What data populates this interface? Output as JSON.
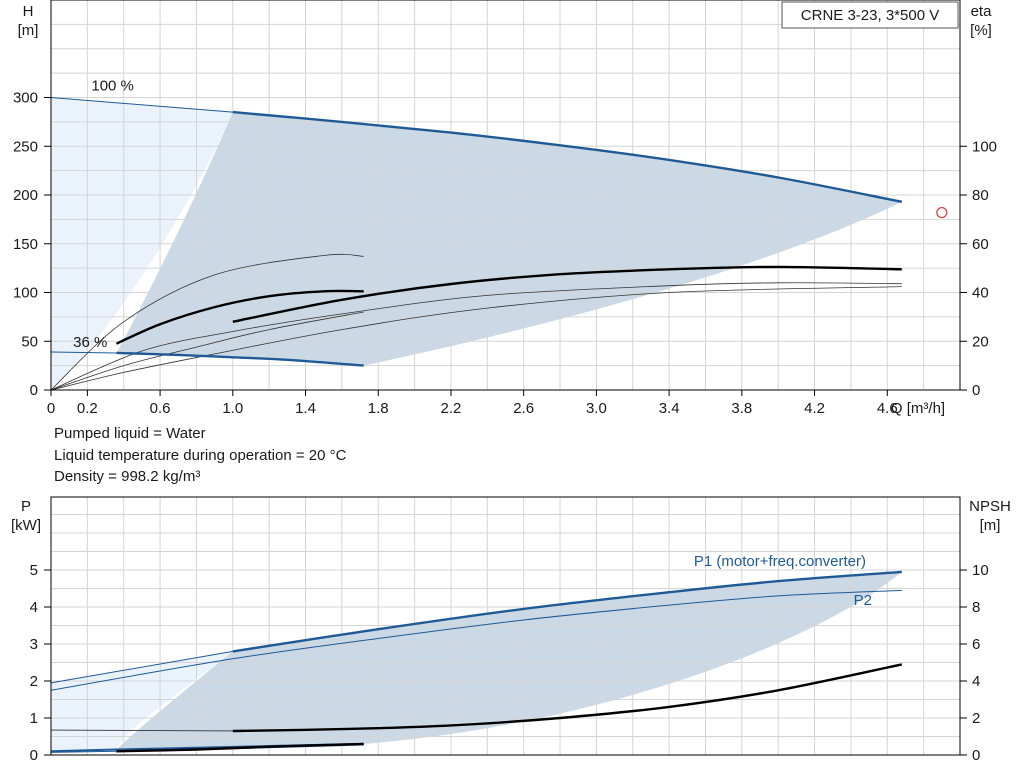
{
  "title": "CRNE 3-23, 3*500 V",
  "info_lines": [
    "Pumped liquid = Water",
    "Liquid temperature during operation = 20 °C",
    "Density = 998.2 kg/m³"
  ],
  "colors": {
    "grid": "#d4d4d4",
    "area_light": "#eaf3fc",
    "area_dark": "#cbd9e6",
    "curve_blue": "#1f5a96",
    "curve_black": "#000000",
    "marker": "#e0383a"
  },
  "chart_data": [
    {
      "type": "line",
      "name": "head-efficiency",
      "xlabel": "Q [m³/h]",
      "ylabel": "H",
      "ylabel_unit": "[m]",
      "y2label": "eta",
      "y2label_unit": "[%]",
      "xlim": [
        0,
        5
      ],
      "ylim": [
        0,
        400
      ],
      "y2lim": [
        0,
        160
      ],
      "x_ticks": [
        0,
        0.2,
        0.6,
        1.0,
        1.4,
        1.8,
        2.2,
        2.6,
        3.0,
        3.4,
        3.8,
        4.2,
        4.6
      ],
      "y_ticks": [
        0,
        50,
        100,
        150,
        200,
        250,
        300
      ],
      "y2_ticks": [
        0,
        20,
        40,
        60,
        80,
        100
      ],
      "speed_labels": [
        {
          "text": "100 %",
          "x": 0.2,
          "y": 303
        },
        {
          "text": "36 %",
          "x": 0.1,
          "y": 40
        }
      ],
      "operating_point": {
        "x": 4.9,
        "y": 182
      },
      "series": [
        {
          "id": "H_full_speed",
          "axis": "H",
          "x": [
            0,
            1.0,
            1.6,
            2.2,
            2.8,
            3.4,
            4.0,
            4.68
          ],
          "y": [
            300,
            285,
            275,
            264,
            251,
            236,
            218,
            193
          ]
        },
        {
          "id": "H_min_speed",
          "axis": "H",
          "x": [
            0,
            0.36,
            0.7,
            1.0,
            1.3,
            1.72
          ],
          "y": [
            39,
            38,
            36,
            33.5,
            31,
            25
          ]
        },
        {
          "id": "eta_full_speed",
          "axis": "eta",
          "x": [
            1.0,
            1.6,
            2.2,
            2.8,
            3.4,
            4.0,
            4.68
          ],
          "y": [
            28,
            37,
            43.5,
            47.5,
            49.5,
            50.5,
            49.5
          ]
        },
        {
          "id": "eta_min_speed",
          "axis": "eta",
          "x": [
            0.36,
            0.6,
            0.9,
            1.2,
            1.5,
            1.72
          ],
          "y": [
            19,
            27,
            34,
            38.5,
            40.5,
            40.5
          ]
        }
      ]
    },
    {
      "type": "line",
      "name": "power-npsh",
      "ylabel": "P",
      "ylabel_unit": "[kW]",
      "y2label": "NPSH",
      "y2label_unit": "[m]",
      "xlim": [
        0,
        5
      ],
      "ylim": [
        0,
        6
      ],
      "y2lim": [
        0,
        12
      ],
      "y_ticks": [
        0,
        1,
        2,
        3,
        4,
        5
      ],
      "y2_ticks": [
        0,
        2,
        4,
        6,
        8,
        10
      ],
      "series": [
        {
          "id": "P1",
          "name": "P1 (motor+freq.converter)",
          "axis": "P",
          "x": [
            0,
            1.0,
            1.8,
            2.6,
            3.4,
            4.0,
            4.68
          ],
          "y": [
            1.95,
            2.8,
            3.4,
            3.95,
            4.4,
            4.7,
            4.95
          ]
        },
        {
          "id": "P2",
          "name": "P2",
          "axis": "P",
          "x": [
            0,
            1.0,
            1.8,
            2.6,
            3.4,
            4.0,
            4.68
          ],
          "y": [
            1.75,
            2.6,
            3.15,
            3.65,
            4.05,
            4.3,
            4.45
          ]
        },
        {
          "id": "P1_min",
          "axis": "P",
          "x": [
            0,
            0.36,
            1.0,
            1.72
          ],
          "y": [
            0.1,
            0.15,
            0.22,
            0.3
          ]
        },
        {
          "id": "P2_min",
          "axis": "P",
          "x": [
            0,
            0.36,
            1.0,
            1.72
          ],
          "y": [
            0.07,
            0.1,
            0.17,
            0.27
          ]
        },
        {
          "id": "NPSH_full_speed",
          "axis": "NPSH",
          "x": [
            0,
            1.0,
            1.6,
            2.2,
            2.8,
            3.4,
            4.0,
            4.68
          ],
          "y": [
            1.35,
            1.3,
            1.4,
            1.6,
            2.0,
            2.6,
            3.5,
            4.9
          ]
        },
        {
          "id": "NPSH_min_speed",
          "axis": "NPSH",
          "x": [
            0.36,
            0.8,
            1.2,
            1.72
          ],
          "y": [
            0.2,
            0.3,
            0.45,
            0.6
          ]
        }
      ]
    }
  ]
}
